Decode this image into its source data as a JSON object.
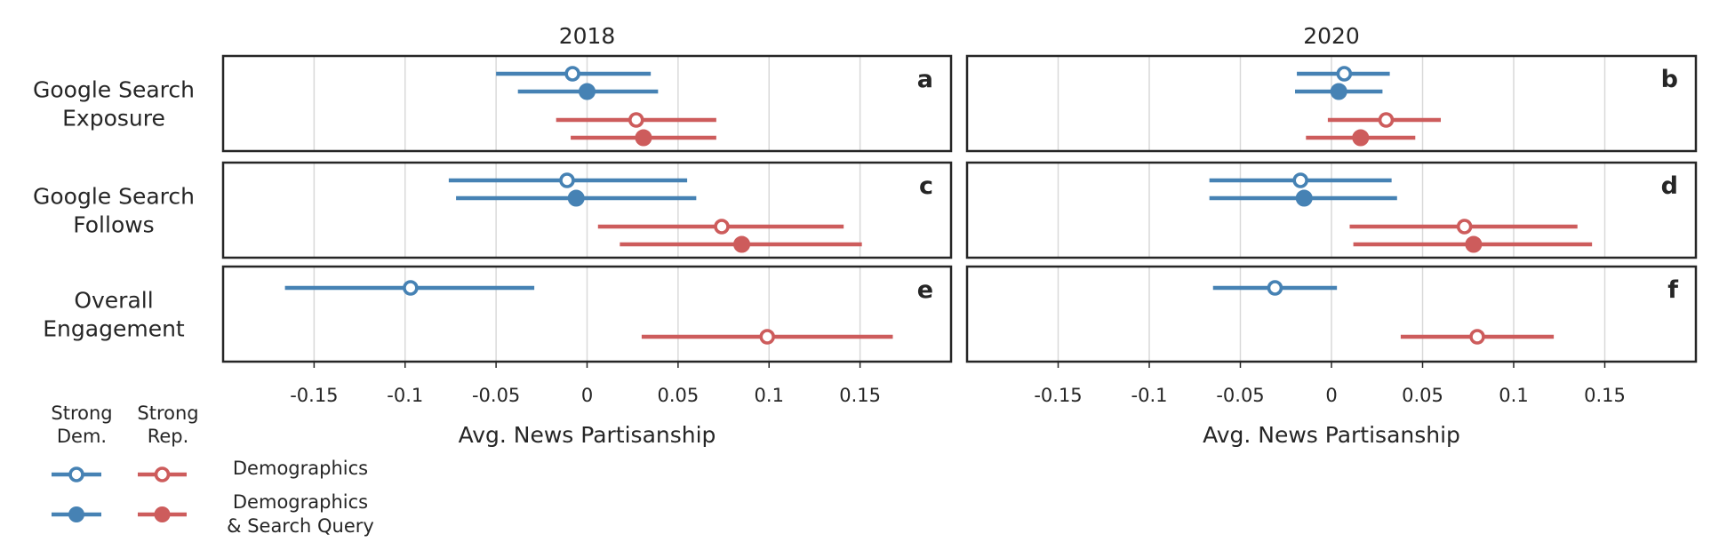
{
  "chart_data": {
    "type": "dot-interval",
    "columns": [
      "2018",
      "2020"
    ],
    "rows": [
      {
        "label_lines": [
          "Google Search",
          "Exposure"
        ]
      },
      {
        "label_lines": [
          "Google Search",
          "Follows"
        ]
      },
      {
        "label_lines": [
          "Overall",
          "Engagement"
        ]
      }
    ],
    "xlabel": "Avg. News Partisanship",
    "xlim": [
      -0.2,
      0.2
    ],
    "xticks": [
      {
        "value": -0.15,
        "label": "-0.15"
      },
      {
        "value": -0.1,
        "label": "-0.1"
      },
      {
        "value": -0.05,
        "label": "-0.05"
      },
      {
        "value": 0,
        "label": "0"
      },
      {
        "value": 0.05,
        "label": "0.05"
      },
      {
        "value": 0.1,
        "label": "0.1"
      },
      {
        "value": 0.15,
        "label": "0.15"
      }
    ],
    "grid": true,
    "colors": {
      "dem": "#4682b4",
      "rep": "#cd5c5c"
    },
    "panels": [
      {
        "letter": "a",
        "row": 0,
        "col": 0,
        "points": [
          {
            "group": "dem",
            "model": "demographics",
            "est": -0.008,
            "lo": -0.05,
            "hi": 0.035
          },
          {
            "group": "dem",
            "model": "search",
            "est": 0.0,
            "lo": -0.038,
            "hi": 0.039
          },
          {
            "group": "rep",
            "model": "demographics",
            "est": 0.027,
            "lo": -0.017,
            "hi": 0.071
          },
          {
            "group": "rep",
            "model": "search",
            "est": 0.031,
            "lo": -0.009,
            "hi": 0.071
          }
        ]
      },
      {
        "letter": "b",
        "row": 0,
        "col": 1,
        "points": [
          {
            "group": "dem",
            "model": "demographics",
            "est": 0.007,
            "lo": -0.019,
            "hi": 0.032
          },
          {
            "group": "dem",
            "model": "search",
            "est": 0.004,
            "lo": -0.02,
            "hi": 0.028
          },
          {
            "group": "rep",
            "model": "demographics",
            "est": 0.03,
            "lo": -0.002,
            "hi": 0.06
          },
          {
            "group": "rep",
            "model": "search",
            "est": 0.016,
            "lo": -0.014,
            "hi": 0.046
          }
        ]
      },
      {
        "letter": "c",
        "row": 1,
        "col": 0,
        "points": [
          {
            "group": "dem",
            "model": "demographics",
            "est": -0.011,
            "lo": -0.076,
            "hi": 0.055
          },
          {
            "group": "dem",
            "model": "search",
            "est": -0.006,
            "lo": -0.072,
            "hi": 0.06
          },
          {
            "group": "rep",
            "model": "demographics",
            "est": 0.074,
            "lo": 0.006,
            "hi": 0.141
          },
          {
            "group": "rep",
            "model": "search",
            "est": 0.085,
            "lo": 0.018,
            "hi": 0.151
          }
        ]
      },
      {
        "letter": "d",
        "row": 1,
        "col": 1,
        "points": [
          {
            "group": "dem",
            "model": "demographics",
            "est": -0.017,
            "lo": -0.067,
            "hi": 0.033
          },
          {
            "group": "dem",
            "model": "search",
            "est": -0.015,
            "lo": -0.067,
            "hi": 0.036
          },
          {
            "group": "rep",
            "model": "demographics",
            "est": 0.073,
            "lo": 0.01,
            "hi": 0.135
          },
          {
            "group": "rep",
            "model": "search",
            "est": 0.078,
            "lo": 0.012,
            "hi": 0.143
          }
        ]
      },
      {
        "letter": "e",
        "row": 2,
        "col": 0,
        "points": [
          {
            "group": "dem",
            "model": "demographics",
            "est": -0.097,
            "lo": -0.166,
            "hi": -0.029
          },
          {
            "group": "rep",
            "model": "demographics",
            "est": 0.099,
            "lo": 0.03,
            "hi": 0.168
          }
        ]
      },
      {
        "letter": "f",
        "row": 2,
        "col": 1,
        "points": [
          {
            "group": "dem",
            "model": "demographics",
            "est": -0.031,
            "lo": -0.065,
            "hi": 0.003
          },
          {
            "group": "rep",
            "model": "demographics",
            "est": 0.08,
            "lo": 0.038,
            "hi": 0.122
          }
        ]
      }
    ],
    "legend": {
      "position": "bottom-left",
      "group_headers": [
        [
          "Strong",
          "Dem."
        ],
        [
          "Strong",
          "Rep."
        ]
      ],
      "entries": [
        {
          "model": "demographics",
          "marker": "open",
          "label_lines": [
            "Demographics"
          ]
        },
        {
          "model": "search",
          "marker": "filled",
          "label_lines": [
            "Demographics",
            "& Search Query"
          ]
        }
      ]
    }
  }
}
